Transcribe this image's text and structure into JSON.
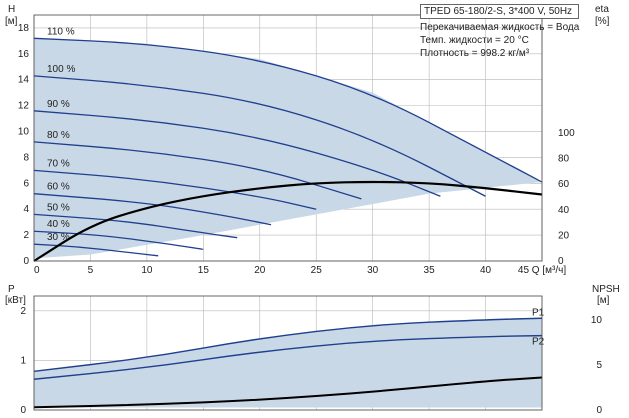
{
  "info": {
    "model": "TPED 65-180/2-S, 3*400 V, 50Hz",
    "liquid": "Перекачиваемая жидкость = Вода",
    "temp": "Темп. жидкости = 20 °C",
    "density": "Плотность = 998.2 кг/м³"
  },
  "colors": {
    "curve": "#1f3f8f",
    "band": "#c9d8e6",
    "eff": "#000000",
    "grid": "#b8b8b8"
  },
  "chart_data": [
    {
      "type": "line",
      "name": "head",
      "ylabel_top": "H",
      "ylabel_unit": "[м]",
      "y2label_top": "eta",
      "y2label_unit": "[%]",
      "xlabel": "Q [м³/ч]",
      "xlim": [
        0,
        45
      ],
      "ylim": [
        0,
        19
      ],
      "y2lim": [
        0,
        100
      ],
      "xticks": [
        0,
        5,
        10,
        15,
        20,
        25,
        30,
        35,
        40,
        45
      ],
      "yticks": [
        0,
        2,
        4,
        6,
        8,
        10,
        12,
        14,
        16,
        18
      ],
      "y2ticks": [
        0,
        20,
        40,
        60,
        80,
        100
      ],
      "grid": true,
      "series": [
        {
          "name": "110 %",
          "points": [
            [
              0,
              17.2
            ],
            [
              10,
              16.8
            ],
            [
              20,
              15.6
            ],
            [
              30,
              13.0
            ],
            [
              40,
              8.4
            ],
            [
              45,
              6.1
            ]
          ]
        },
        {
          "name": "100 %",
          "points": [
            [
              0,
              14.3
            ],
            [
              10,
              13.6
            ],
            [
              20,
              12.3
            ],
            [
              30,
              9.5
            ],
            [
              40,
              5.0
            ]
          ]
        },
        {
          "name": "90 %",
          "points": [
            [
              0,
              11.6
            ],
            [
              10,
              10.9
            ],
            [
              20,
              9.6
            ],
            [
              30,
              7.1
            ],
            [
              36,
              5.0
            ]
          ]
        },
        {
          "name": "80 %",
          "points": [
            [
              0,
              9.2
            ],
            [
              10,
              8.5
            ],
            [
              20,
              7.2
            ],
            [
              29,
              4.8
            ]
          ]
        },
        {
          "name": "70 %",
          "points": [
            [
              0,
              7.0
            ],
            [
              10,
              6.3
            ],
            [
              20,
              5.0
            ],
            [
              25,
              4.0
            ]
          ]
        },
        {
          "name": "60 %",
          "points": [
            [
              0,
              5.2
            ],
            [
              10,
              4.5
            ],
            [
              17,
              3.5
            ],
            [
              21,
              2.8
            ]
          ]
        },
        {
          "name": "50 %",
          "points": [
            [
              0,
              3.6
            ],
            [
              8,
              3.1
            ],
            [
              14,
              2.3
            ],
            [
              18,
              1.8
            ]
          ]
        },
        {
          "name": "40 %",
          "points": [
            [
              0,
              2.3
            ],
            [
              6,
              2.0
            ],
            [
              12,
              1.3
            ],
            [
              15,
              0.9
            ]
          ]
        },
        {
          "name": "30 %",
          "points": [
            [
              0,
              1.3
            ],
            [
              4,
              1.1
            ],
            [
              8,
              0.7
            ],
            [
              11,
              0.4
            ]
          ]
        }
      ],
      "eta_curve": [
        [
          0,
          0
        ],
        [
          5,
          28
        ],
        [
          10,
          42
        ],
        [
          15,
          51
        ],
        [
          20,
          57
        ],
        [
          25,
          61
        ],
        [
          30,
          62
        ],
        [
          35,
          61
        ],
        [
          40,
          57
        ],
        [
          45,
          52
        ]
      ],
      "operating_area": [
        [
          0,
          17.2
        ],
        [
          10,
          16.8
        ],
        [
          20,
          15.6
        ],
        [
          30,
          13.0
        ],
        [
          40,
          8.4
        ],
        [
          45,
          6.1
        ],
        [
          35,
          5.2
        ],
        [
          25,
          3.6
        ],
        [
          15,
          2.0
        ],
        [
          5,
          0.5
        ],
        [
          0,
          0.2
        ]
      ]
    },
    {
      "type": "line",
      "name": "power",
      "ylabel_top": "P",
      "ylabel_unit": "[кВт]",
      "y2label_top": "NPSH",
      "y2label_unit": "[м]",
      "xlim": [
        0,
        45
      ],
      "ylim": [
        0,
        2
      ],
      "y2lim": [
        0,
        11
      ],
      "yticks": [
        0,
        1,
        2
      ],
      "y2ticks": [
        0,
        5,
        10
      ],
      "series": [
        {
          "name": "P1",
          "points": [
            [
              0,
              0.78
            ],
            [
              10,
              1.05
            ],
            [
              20,
              1.45
            ],
            [
              30,
              1.72
            ],
            [
              40,
              1.82
            ],
            [
              45,
              1.85
            ]
          ]
        },
        {
          "name": "P2",
          "points": [
            [
              0,
              0.62
            ],
            [
              10,
              0.85
            ],
            [
              20,
              1.18
            ],
            [
              30,
              1.4
            ],
            [
              40,
              1.48
            ],
            [
              45,
              1.5
            ]
          ]
        }
      ],
      "npsh": [
        [
          0,
          0.3
        ],
        [
          10,
          0.6
        ],
        [
          20,
          1.1
        ],
        [
          30,
          2.0
        ],
        [
          40,
          3.2
        ],
        [
          45,
          3.6
        ]
      ]
    }
  ]
}
